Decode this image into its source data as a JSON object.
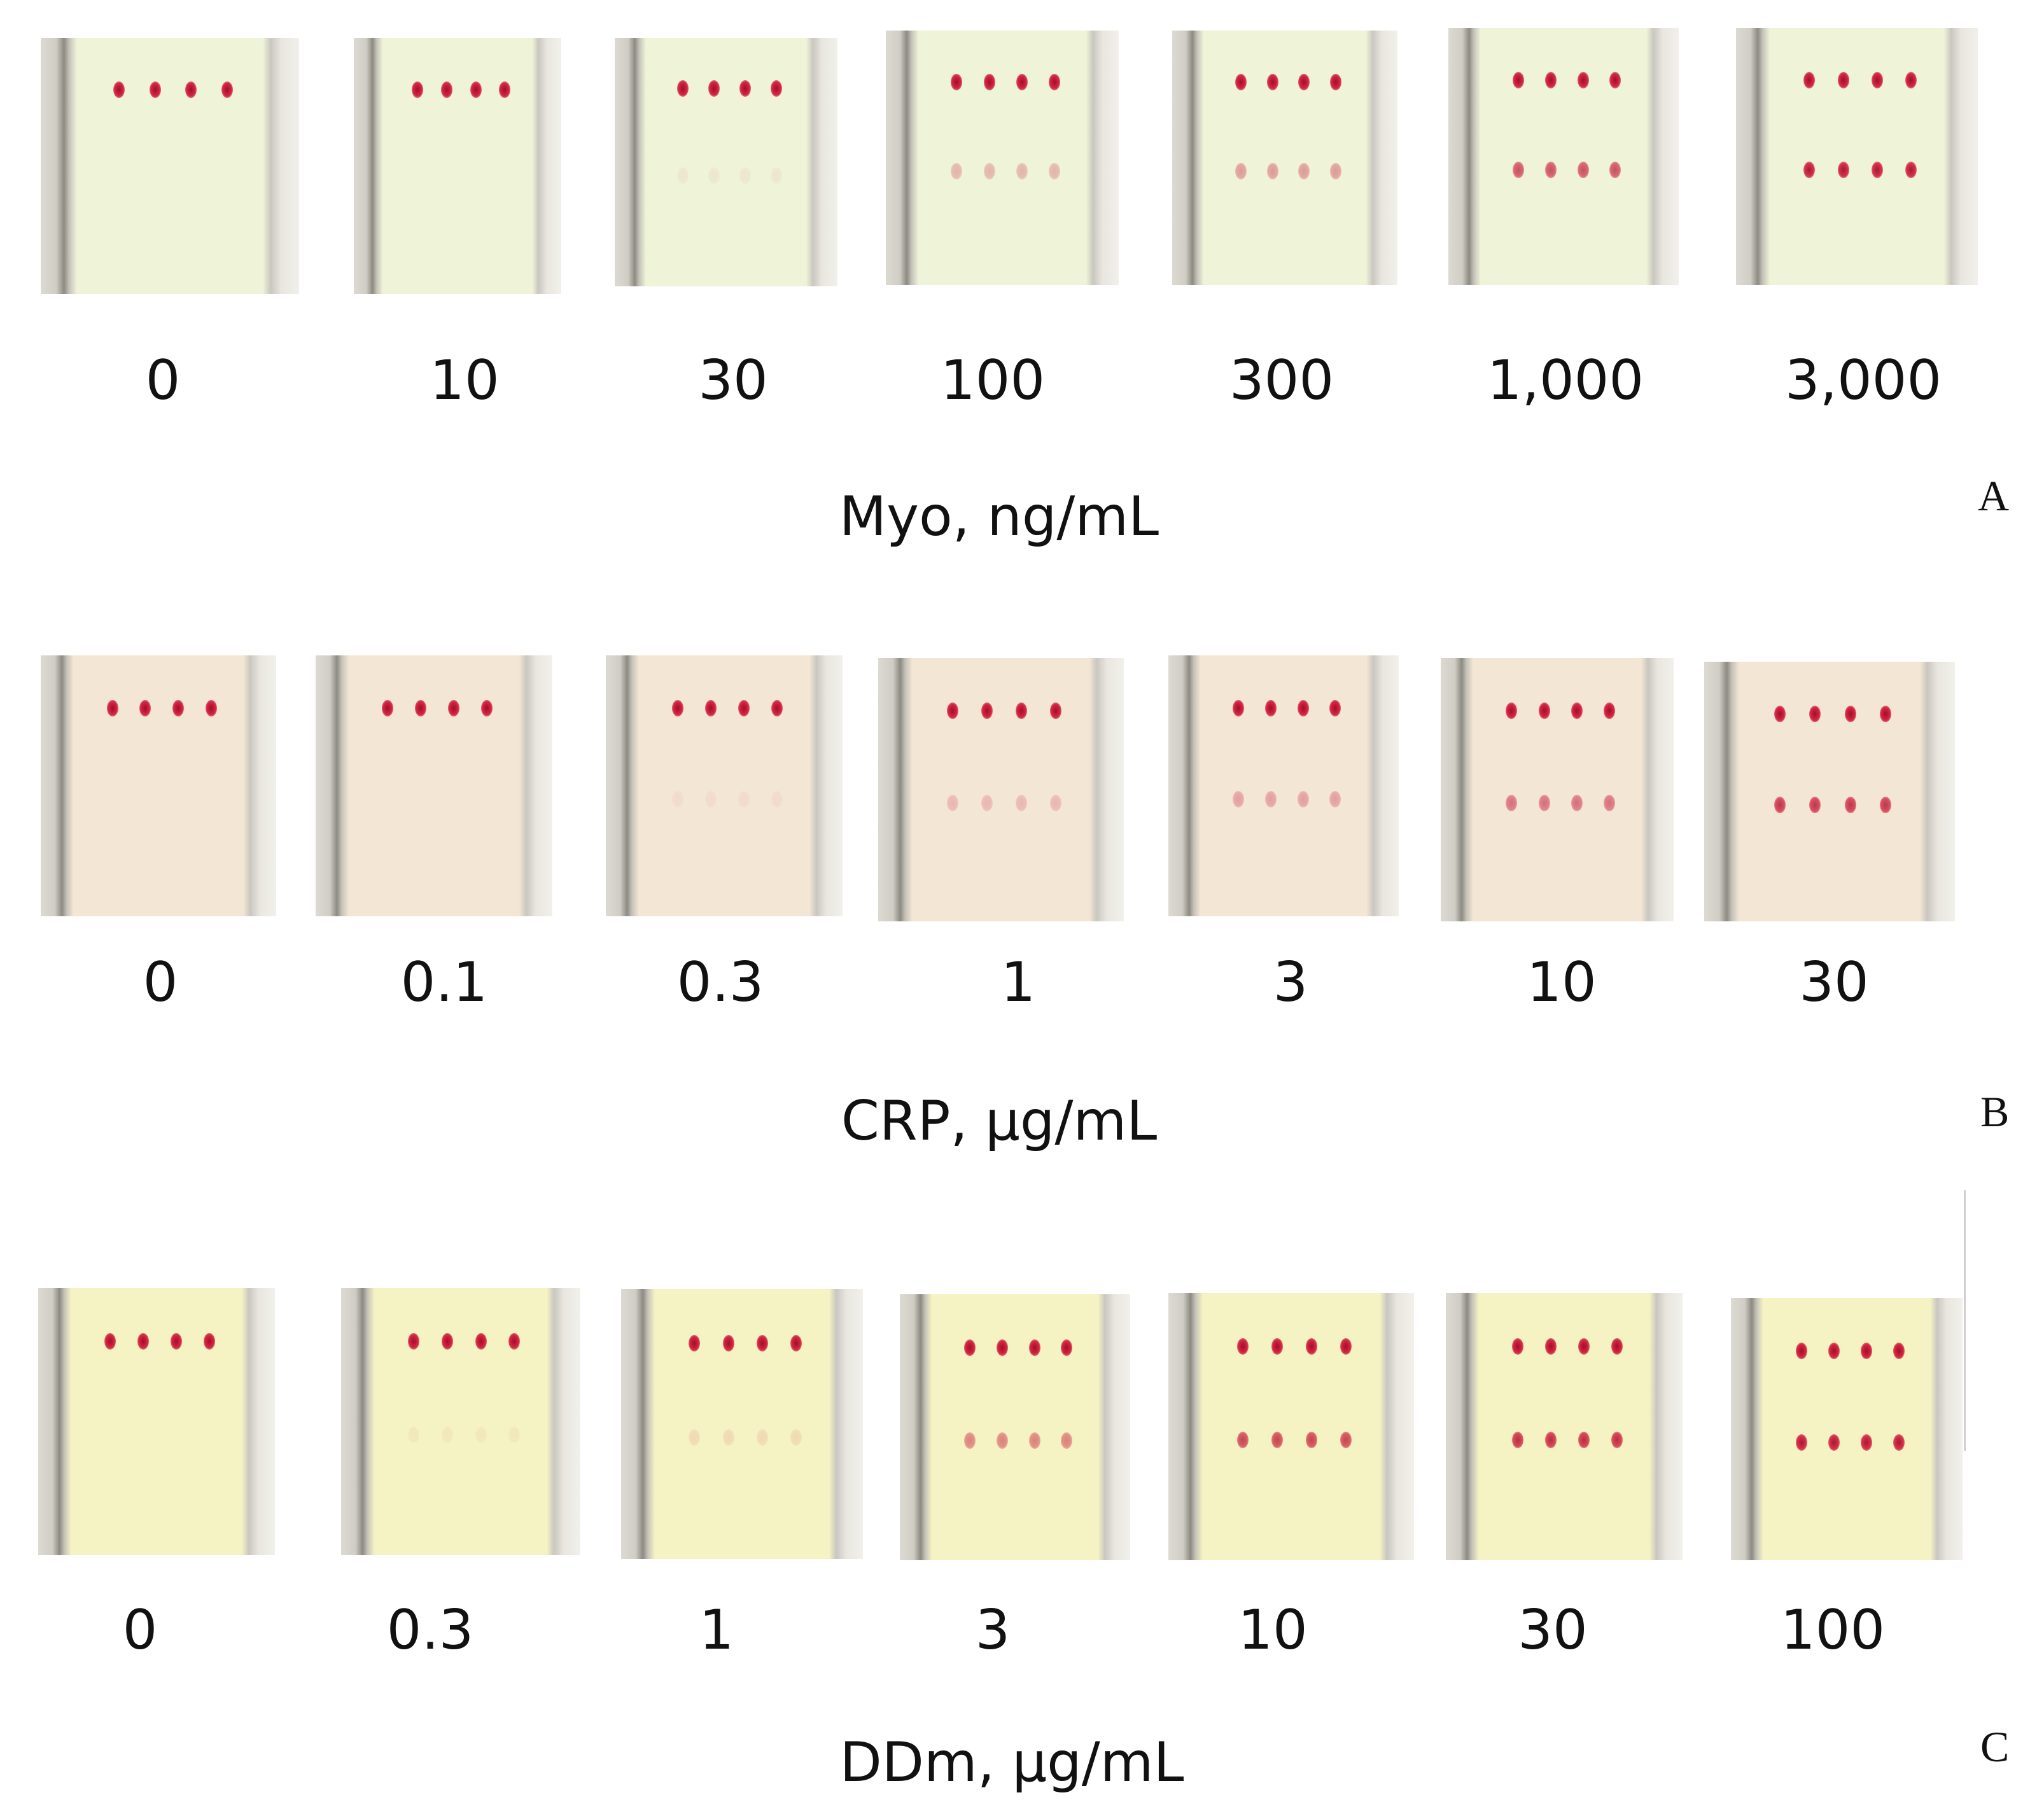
{
  "panels": [
    {
      "letter": "A",
      "axis_label": "Myo, ng/mL",
      "pad_color": "#eff3d8",
      "strips": [
        {
          "value": "0",
          "test_line_intensity": 0.0
        },
        {
          "value": "10",
          "test_line_intensity": 0.0
        },
        {
          "value": "30",
          "test_line_intensity": 0.05
        },
        {
          "value": "100",
          "test_line_intensity": 0.25
        },
        {
          "value": "300",
          "test_line_intensity": 0.35
        },
        {
          "value": "1,000",
          "test_line_intensity": 0.65
        },
        {
          "value": "3,000",
          "test_line_intensity": 0.9
        }
      ]
    },
    {
      "letter": "B",
      "axis_label": "CRP, µg/mL",
      "pad_color": "#f4e6d5",
      "strips": [
        {
          "value": "0",
          "test_line_intensity": 0.0
        },
        {
          "value": "0.1",
          "test_line_intensity": 0.0
        },
        {
          "value": "0.3",
          "test_line_intensity": 0.05
        },
        {
          "value": "1",
          "test_line_intensity": 0.2
        },
        {
          "value": "3",
          "test_line_intensity": 0.3
        },
        {
          "value": "10",
          "test_line_intensity": 0.5
        },
        {
          "value": "30",
          "test_line_intensity": 0.75
        }
      ]
    },
    {
      "letter": "C",
      "axis_label": "DDm, µg/mL",
      "pad_color": "#f5f3c4",
      "strips": [
        {
          "value": "0",
          "test_line_intensity": 0.0
        },
        {
          "value": "0.3",
          "test_line_intensity": 0.05
        },
        {
          "value": "1",
          "test_line_intensity": 0.1
        },
        {
          "value": "3",
          "test_line_intensity": 0.45
        },
        {
          "value": "10",
          "test_line_intensity": 0.7
        },
        {
          "value": "30",
          "test_line_intensity": 0.8
        },
        {
          "value": "100",
          "test_line_intensity": 0.9
        }
      ]
    }
  ]
}
